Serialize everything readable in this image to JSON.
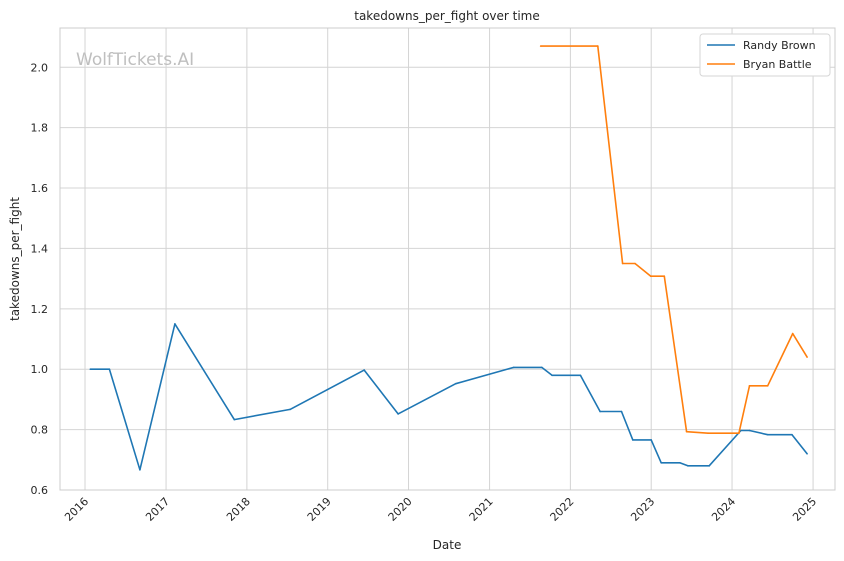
{
  "chart_data": {
    "type": "line",
    "title": "takedowns_per_fight over time",
    "xlabel": "Date",
    "ylabel": "takedowns_per_fight",
    "watermark": "WolfTickets.AI",
    "x_ticks": [
      "2016",
      "2017",
      "2018",
      "2019",
      "2020",
      "2021",
      "2022",
      "2023",
      "2024",
      "2025"
    ],
    "y_ticks": [
      "0.6",
      "0.8",
      "1.0",
      "1.2",
      "1.4",
      "1.6",
      "1.8",
      "2.0"
    ],
    "xlim": [
      "2015-09-10",
      "2025-04-10"
    ],
    "ylim": [
      0.6,
      2.13
    ],
    "grid": true,
    "legend_position": "top-right",
    "series": [
      {
        "name": "Randy Brown",
        "color": "#1f77b4",
        "points": [
          {
            "x": "2016-01-25",
            "y": 1.0
          },
          {
            "x": "2016-04-20",
            "y": 1.0
          },
          {
            "x": "2016-09-05",
            "y": 0.667
          },
          {
            "x": "2017-02-10",
            "y": 1.15
          },
          {
            "x": "2017-11-05",
            "y": 0.833
          },
          {
            "x": "2018-07-15",
            "y": 0.867
          },
          {
            "x": "2019-06-15",
            "y": 0.997
          },
          {
            "x": "2019-11-15",
            "y": 0.852
          },
          {
            "x": "2020-08-01",
            "y": 0.952
          },
          {
            "x": "2021-04-20",
            "y": 1.006
          },
          {
            "x": "2021-08-25",
            "y": 1.006
          },
          {
            "x": "2021-10-10",
            "y": 0.98
          },
          {
            "x": "2022-02-15",
            "y": 0.98
          },
          {
            "x": "2022-05-15",
            "y": 0.86
          },
          {
            "x": "2022-08-20",
            "y": 0.86
          },
          {
            "x": "2022-10-10",
            "y": 0.766
          },
          {
            "x": "2023-01-01",
            "y": 0.766
          },
          {
            "x": "2023-02-15",
            "y": 0.69
          },
          {
            "x": "2023-05-10",
            "y": 0.69
          },
          {
            "x": "2023-06-15",
            "y": 0.68
          },
          {
            "x": "2023-09-20",
            "y": 0.68
          },
          {
            "x": "2024-02-10",
            "y": 0.797
          },
          {
            "x": "2024-03-20",
            "y": 0.797
          },
          {
            "x": "2024-06-10",
            "y": 0.783
          },
          {
            "x": "2024-09-28",
            "y": 0.783
          },
          {
            "x": "2024-12-05",
            "y": 0.72
          }
        ]
      },
      {
        "name": "Bryan Battle",
        "color": "#ff7f0e",
        "points": [
          {
            "x": "2021-08-20",
            "y": 2.07
          },
          {
            "x": "2022-05-05",
            "y": 2.07
          },
          {
            "x": "2022-08-25",
            "y": 1.35
          },
          {
            "x": "2022-10-20",
            "y": 1.35
          },
          {
            "x": "2022-12-30",
            "y": 1.308
          },
          {
            "x": "2023-03-01",
            "y": 1.308
          },
          {
            "x": "2023-06-10",
            "y": 0.793
          },
          {
            "x": "2023-09-15",
            "y": 0.788
          },
          {
            "x": "2024-02-01",
            "y": 0.788
          },
          {
            "x": "2024-03-20",
            "y": 0.945
          },
          {
            "x": "2024-06-10",
            "y": 0.945
          },
          {
            "x": "2024-10-01",
            "y": 1.118
          },
          {
            "x": "2024-12-05",
            "y": 1.04
          }
        ]
      }
    ]
  }
}
